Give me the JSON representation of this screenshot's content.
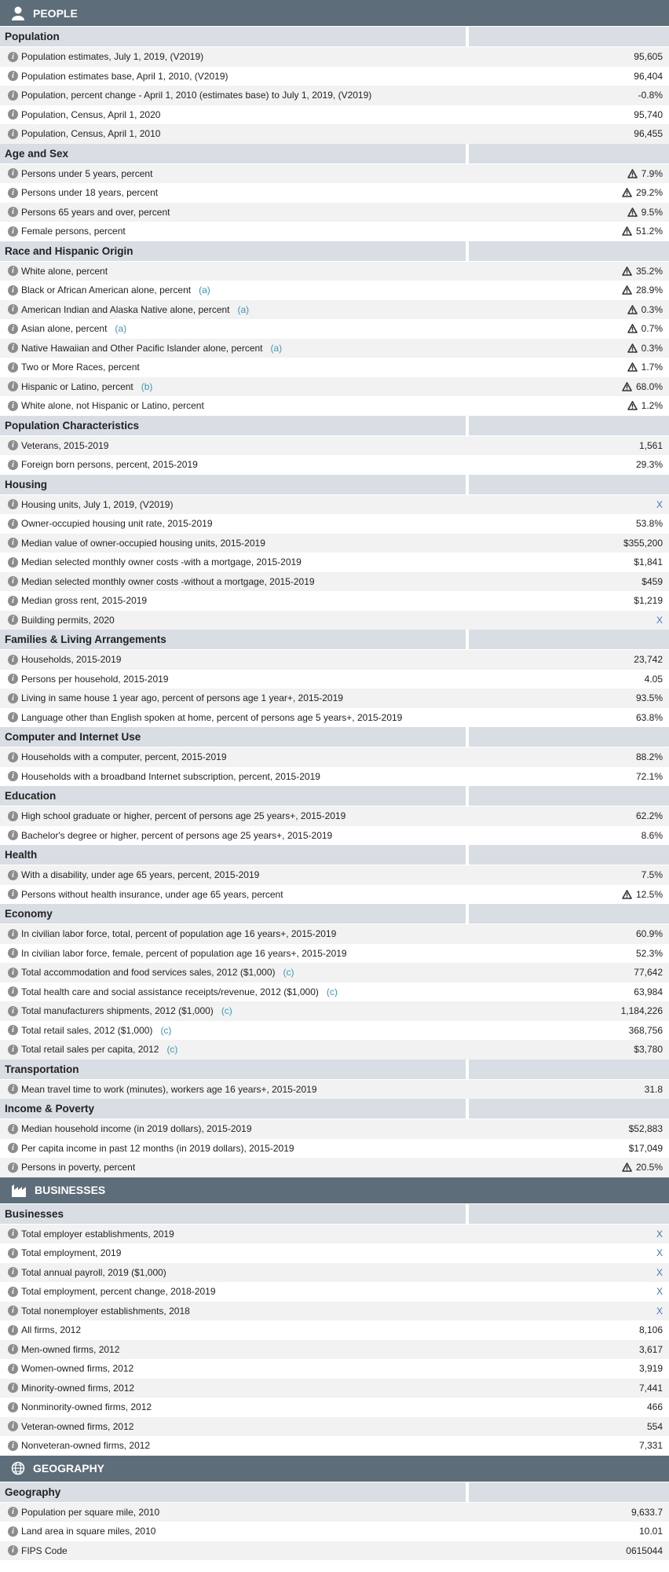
{
  "sections": [
    {
      "title": "PEOPLE",
      "groups": [
        {
          "title": "Population",
          "rows": [
            {
              "label": "Population estimates, July 1, 2019, (V2019)",
              "value": "95,605"
            },
            {
              "label": "Population estimates base, April 1, 2010, (V2019)",
              "value": "96,404"
            },
            {
              "label": "Population, percent change - April 1, 2010 (estimates base) to July 1, 2019, (V2019)",
              "value": "-0.8%"
            },
            {
              "label": "Population, Census, April 1, 2020",
              "value": "95,740"
            },
            {
              "label": "Population, Census, April 1, 2010",
              "value": "96,455"
            }
          ]
        },
        {
          "title": "Age and Sex",
          "rows": [
            {
              "label": "Persons under 5 years, percent",
              "value": "7.9%",
              "flag": true
            },
            {
              "label": "Persons under 18 years, percent",
              "value": "29.2%",
              "flag": true
            },
            {
              "label": "Persons 65 years and over, percent",
              "value": "9.5%",
              "flag": true
            },
            {
              "label": "Female persons, percent",
              "value": "51.2%",
              "flag": true
            }
          ]
        },
        {
          "title": "Race and Hispanic Origin",
          "rows": [
            {
              "label": "White alone, percent",
              "value": "35.2%",
              "flag": true
            },
            {
              "label": "Black or African American alone, percent",
              "note": "(a)",
              "value": "28.9%",
              "flag": true
            },
            {
              "label": "American Indian and Alaska Native alone, percent",
              "note": "(a)",
              "value": "0.3%",
              "flag": true
            },
            {
              "label": "Asian alone, percent",
              "note": "(a)",
              "value": "0.7%",
              "flag": true
            },
            {
              "label": "Native Hawaiian and Other Pacific Islander alone, percent",
              "note": "(a)",
              "value": "0.3%",
              "flag": true
            },
            {
              "label": "Two or More Races, percent",
              "value": "1.7%",
              "flag": true
            },
            {
              "label": "Hispanic or Latino, percent",
              "note": "(b)",
              "value": "68.0%",
              "flag": true
            },
            {
              "label": "White alone, not Hispanic or Latino, percent",
              "value": "1.2%",
              "flag": true
            }
          ]
        },
        {
          "title": "Population Characteristics",
          "rows": [
            {
              "label": "Veterans, 2015-2019",
              "value": "1,561"
            },
            {
              "label": "Foreign born persons, percent, 2015-2019",
              "value": "29.3%"
            }
          ]
        },
        {
          "title": "Housing",
          "rows": [
            {
              "label": "Housing units, July 1, 2019, (V2019)",
              "value": "X"
            },
            {
              "label": "Owner-occupied housing unit rate, 2015-2019",
              "value": "53.8%"
            },
            {
              "label": "Median value of owner-occupied housing units, 2015-2019",
              "value": "$355,200"
            },
            {
              "label": "Median selected monthly owner costs -with a mortgage, 2015-2019",
              "value": "$1,841"
            },
            {
              "label": "Median selected monthly owner costs -without a mortgage, 2015-2019",
              "value": "$459"
            },
            {
              "label": "Median gross rent, 2015-2019",
              "value": "$1,219"
            },
            {
              "label": "Building permits, 2020",
              "value": "X"
            }
          ]
        },
        {
          "title": "Families & Living Arrangements",
          "rows": [
            {
              "label": "Households, 2015-2019",
              "value": "23,742"
            },
            {
              "label": "Persons per household, 2015-2019",
              "value": "4.05"
            },
            {
              "label": "Living in same house 1 year ago, percent of persons age 1 year+, 2015-2019",
              "value": "93.5%"
            },
            {
              "label": "Language other than English spoken at home, percent of persons age 5 years+, 2015-2019",
              "value": "63.8%"
            }
          ]
        },
        {
          "title": "Computer and Internet Use",
          "rows": [
            {
              "label": "Households with a computer, percent, 2015-2019",
              "value": "88.2%"
            },
            {
              "label": "Households with a broadband Internet subscription, percent, 2015-2019",
              "value": "72.1%"
            }
          ]
        },
        {
          "title": "Education",
          "rows": [
            {
              "label": "High school graduate or higher, percent of persons age 25 years+, 2015-2019",
              "value": "62.2%"
            },
            {
              "label": "Bachelor's degree or higher, percent of persons age 25 years+, 2015-2019",
              "value": "8.6%"
            }
          ]
        },
        {
          "title": "Health",
          "rows": [
            {
              "label": "With a disability, under age 65 years, percent, 2015-2019",
              "value": "7.5%"
            },
            {
              "label": "Persons without health insurance, under age 65 years, percent",
              "value": "12.5%",
              "flag": true
            }
          ]
        },
        {
          "title": "Economy",
          "rows": [
            {
              "label": "In civilian labor force, total, percent of population age 16 years+, 2015-2019",
              "value": "60.9%"
            },
            {
              "label": "In civilian labor force, female, percent of population age 16 years+, 2015-2019",
              "value": "52.3%"
            },
            {
              "label": "Total accommodation and food services sales, 2012 ($1,000)",
              "note": "(c)",
              "value": "77,642"
            },
            {
              "label": "Total health care and social assistance receipts/revenue, 2012 ($1,000)",
              "note": "(c)",
              "value": "63,984"
            },
            {
              "label": "Total manufacturers shipments, 2012 ($1,000)",
              "note": "(c)",
              "value": "1,184,226"
            },
            {
              "label": "Total retail sales, 2012 ($1,000)",
              "note": "(c)",
              "value": "368,756"
            },
            {
              "label": "Total retail sales per capita, 2012",
              "note": "(c)",
              "value": "$3,780"
            }
          ]
        },
        {
          "title": "Transportation",
          "rows": [
            {
              "label": "Mean travel time to work (minutes), workers age 16 years+, 2015-2019",
              "value": "31.8"
            }
          ]
        },
        {
          "title": "Income & Poverty",
          "rows": [
            {
              "label": "Median household income (in 2019 dollars), 2015-2019",
              "value": "$52,883"
            },
            {
              "label": "Per capita income in past 12 months (in 2019 dollars), 2015-2019",
              "value": "$17,049"
            },
            {
              "label": "Persons in poverty, percent",
              "value": "20.5%",
              "flag": true
            }
          ]
        }
      ]
    },
    {
      "title": "BUSINESSES",
      "groups": [
        {
          "title": "Businesses",
          "rows": [
            {
              "label": "Total employer establishments, 2019",
              "value": "X"
            },
            {
              "label": "Total employment, 2019",
              "value": "X"
            },
            {
              "label": "Total annual payroll, 2019 ($1,000)",
              "value": "X"
            },
            {
              "label": "Total employment, percent change, 2018-2019",
              "value": "X"
            },
            {
              "label": "Total nonemployer establishments, 2018",
              "value": "X"
            },
            {
              "label": "All firms, 2012",
              "value": "8,106"
            },
            {
              "label": "Men-owned firms, 2012",
              "value": "3,617"
            },
            {
              "label": "Women-owned firms, 2012",
              "value": "3,919"
            },
            {
              "label": "Minority-owned firms, 2012",
              "value": "7,441"
            },
            {
              "label": "Nonminority-owned firms, 2012",
              "value": "466"
            },
            {
              "label": "Veteran-owned firms, 2012",
              "value": "554"
            },
            {
              "label": "Nonveteran-owned firms, 2012",
              "value": "7,331"
            }
          ]
        }
      ]
    },
    {
      "title": "GEOGRAPHY",
      "groups": [
        {
          "title": "Geography",
          "rows": [
            {
              "label": "Population per square mile, 2010",
              "value": "9,633.7"
            },
            {
              "label": "Land area in square miles, 2010",
              "value": "10.01"
            },
            {
              "label": "FIPS Code",
              "value": "0615044"
            }
          ]
        }
      ]
    }
  ]
}
